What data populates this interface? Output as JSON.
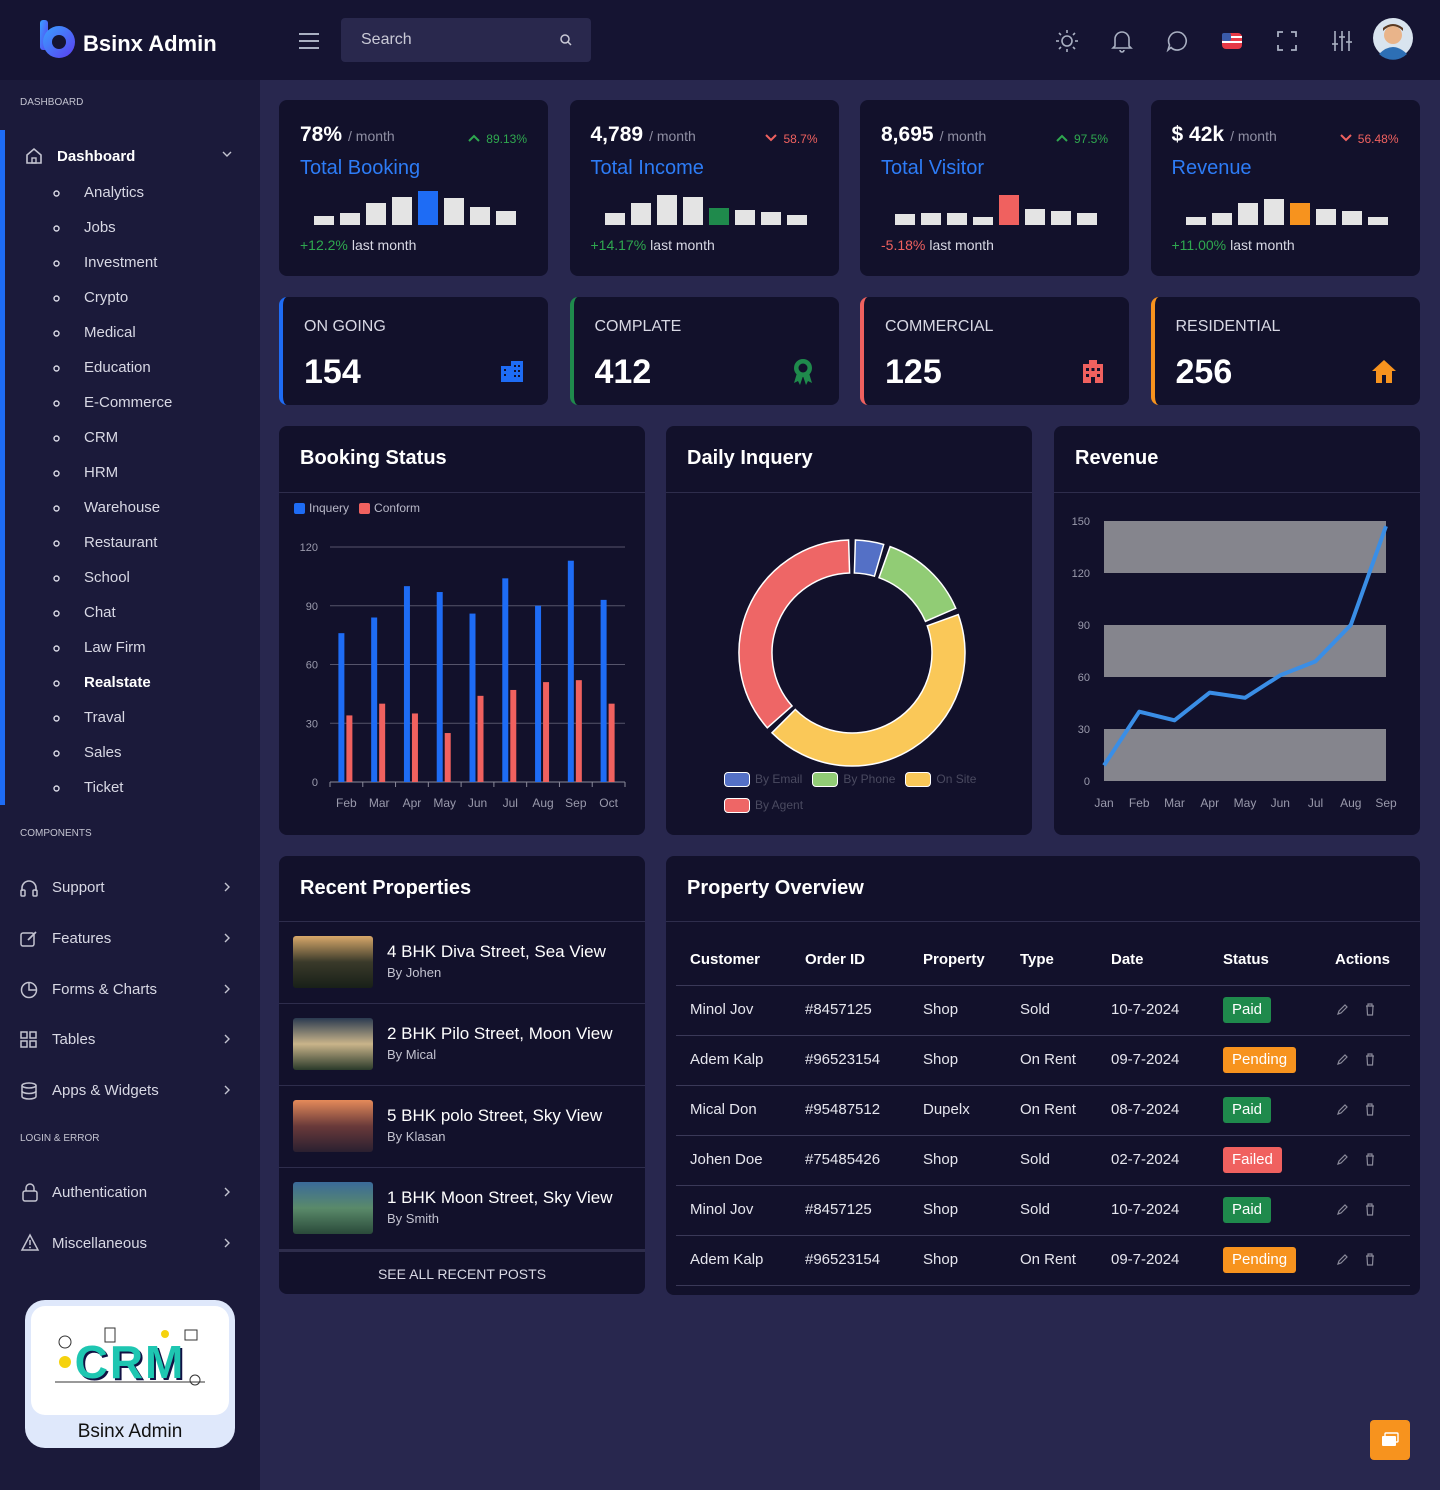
{
  "header": {
    "brand": "Bsinx Admin",
    "search_placeholder": "Search"
  },
  "sidebar": {
    "dashboard_heading": "DASHBOARD",
    "dashboard": {
      "label": "Dashboard",
      "children": [
        "Analytics",
        "Jobs",
        "Investment",
        "Crypto",
        "Medical",
        "Education",
        "E-Commerce",
        "CRM",
        "HRM",
        "Warehouse",
        "Restaurant",
        "School",
        "Chat",
        "Law Firm",
        "Realstate",
        "Traval",
        "Sales",
        "Ticket"
      ]
    },
    "components_heading": "COMPONENTS",
    "components": [
      "Support",
      "Features",
      "Forms & Charts",
      "Tables",
      "Apps & Widgets"
    ],
    "login_heading": "LOGIN & ERROR",
    "login": [
      "Authentication",
      "Miscellaneous"
    ],
    "promo": {
      "image_text": "CRM",
      "caption": "Bsinx Admin"
    }
  },
  "stats": [
    {
      "value": "78%",
      "period": "/ month",
      "change": "89.13%",
      "trend": "up",
      "change_color": "#2fa84f",
      "title": "Total Booking",
      "footer_change": "+12.2%",
      "footer_color": "#2fa84f",
      "footer_text": "last month",
      "bars": [
        9,
        12,
        22,
        28,
        34,
        27,
        18,
        14
      ],
      "colors": [
        "#e4e4e4",
        "#e4e4e4",
        "#e4e4e4",
        "#e4e4e4",
        "#1e6cf5",
        "#e4e4e4",
        "#e4e4e4",
        "#e4e4e4"
      ]
    },
    {
      "value": "4,789",
      "period": "/ month",
      "change": "58.7%",
      "trend": "down",
      "change_color": "#f0615f",
      "title": "Total Income",
      "footer_change": "+14.17%",
      "footer_color": "#2fa84f",
      "footer_text": "last month",
      "bars": [
        12,
        22,
        30,
        28,
        17,
        15,
        13,
        10
      ],
      "colors": [
        "#e4e4e4",
        "#e4e4e4",
        "#e4e4e4",
        "#e4e4e4",
        "#1f8a4c",
        "#e4e4e4",
        "#e4e4e4",
        "#e4e4e4"
      ]
    },
    {
      "value": "8,695",
      "period": "/ month",
      "change": "97.5%",
      "trend": "up",
      "change_color": "#2fa84f",
      "title": "Total Visitor",
      "footer_change": "-5.18%",
      "footer_color": "#f0615f",
      "footer_text": "last month",
      "bars": [
        11,
        12,
        12,
        8,
        30,
        16,
        14,
        12
      ],
      "colors": [
        "#e4e4e4",
        "#e4e4e4",
        "#e4e4e4",
        "#e4e4e4",
        "#f0615f",
        "#e4e4e4",
        "#e4e4e4",
        "#e4e4e4"
      ]
    },
    {
      "value": "$ 42k",
      "period": "/ month",
      "change": "56.48%",
      "trend": "down",
      "change_color": "#f0615f",
      "title": "Revenue",
      "footer_change": "+11.00%",
      "footer_color": "#2fa84f",
      "footer_text": "last month",
      "bars": [
        8,
        12,
        22,
        26,
        22,
        16,
        14,
        8
      ],
      "colors": [
        "#e4e4e4",
        "#e4e4e4",
        "#e4e4e4",
        "#e4e4e4",
        "#f7931e",
        "#e4e4e4",
        "#e4e4e4",
        "#e4e4e4"
      ]
    }
  ],
  "status_cards": [
    {
      "label": "ON GOING",
      "value": 154,
      "color": "#1e6cf5"
    },
    {
      "label": "COMPLATE",
      "value": 412,
      "color": "#1f8a4c"
    },
    {
      "label": "COMMERCIAL",
      "value": 125,
      "color": "#f0615f"
    },
    {
      "label": "RESIDENTIAL",
      "value": 256,
      "color": "#f7931e"
    }
  ],
  "chart_data": [
    {
      "type": "bar",
      "title": "Booking Status",
      "categories": [
        "Feb",
        "Mar",
        "Apr",
        "May",
        "Jun",
        "Jul",
        "Aug",
        "Sep",
        "Oct"
      ],
      "series": [
        {
          "name": "Inquery",
          "color": "#1e6cf5",
          "values": [
            76,
            84,
            100,
            97,
            86,
            104,
            90,
            113,
            93
          ]
        },
        {
          "name": "Conform",
          "color": "#f0615f",
          "values": [
            34,
            40,
            35,
            25,
            44,
            47,
            51,
            52,
            40
          ]
        }
      ],
      "ylim": [
        0,
        120
      ],
      "yticks": [
        0,
        30,
        60,
        90,
        120
      ],
      "grid": true,
      "legend": "top-left"
    },
    {
      "type": "doughnut",
      "title": "Daily Inquery",
      "categories": [
        "By Email",
        "By Phone",
        "On Site",
        "By Agent"
      ],
      "values": [
        5,
        14,
        44,
        37
      ],
      "colors": [
        "#5470c6",
        "#91cc75",
        "#fac858",
        "#ee6666"
      ],
      "legend": "bottom-left"
    },
    {
      "type": "line",
      "title": "Revenue",
      "categories": [
        "Jan",
        "Feb",
        "Mar",
        "Apr",
        "May",
        "Jun",
        "Jul",
        "Aug",
        "Sep"
      ],
      "values": [
        9,
        40,
        35,
        51,
        48,
        61,
        69,
        90,
        147
      ],
      "color": "#3a8ee6",
      "ylim": [
        0,
        150
      ],
      "yticks": [
        0,
        30,
        60,
        90,
        120,
        150
      ],
      "split_area": true,
      "split_area_color": "#85858d"
    }
  ],
  "recent_properties": {
    "title": "Recent Properties",
    "items": [
      {
        "title": "4 BHK Diva Street, Sea View",
        "author": "By Johen"
      },
      {
        "title": "2 BHK Pilo Street, Moon View",
        "author": "By Mical"
      },
      {
        "title": "5 BHK polo Street, Sky View",
        "author": "By Klasan"
      },
      {
        "title": "1 BHK Moon Street, Sky View",
        "author": "By Smith"
      }
    ],
    "footer": "SEE ALL RECENT POSTS"
  },
  "property_overview": {
    "title": "Property Overview",
    "columns": [
      "Customer",
      "Order ID",
      "Property",
      "Type",
      "Date",
      "Status",
      "Actions"
    ],
    "rows": [
      {
        "customer": "Minol Jov",
        "order_id": "#8457125",
        "property": "Shop",
        "type": "Sold",
        "date": "10-7-2024",
        "status": "Paid",
        "status_color": "#1f8a4c"
      },
      {
        "customer": "Adem Kalp",
        "order_id": "#96523154",
        "property": "Shop",
        "type": "On Rent",
        "date": "09-7-2024",
        "status": "Pending",
        "status_color": "#f7931e"
      },
      {
        "customer": "Mical Don",
        "order_id": "#95487512",
        "property": "Dupelx",
        "type": "On Rent",
        "date": "08-7-2024",
        "status": "Paid",
        "status_color": "#1f8a4c"
      },
      {
        "customer": "Johen Doe",
        "order_id": "#75485426",
        "property": "Shop",
        "type": "Sold",
        "date": "02-7-2024",
        "status": "Failed",
        "status_color": "#f0615f"
      },
      {
        "customer": "Minol Jov",
        "order_id": "#8457125",
        "property": "Shop",
        "type": "Sold",
        "date": "10-7-2024",
        "status": "Paid",
        "status_color": "#1f8a4c"
      },
      {
        "customer": "Adem Kalp",
        "order_id": "#96523154",
        "property": "Shop",
        "type": "On Rent",
        "date": "09-7-2024",
        "status": "Pending",
        "status_color": "#f7931e"
      }
    ]
  }
}
